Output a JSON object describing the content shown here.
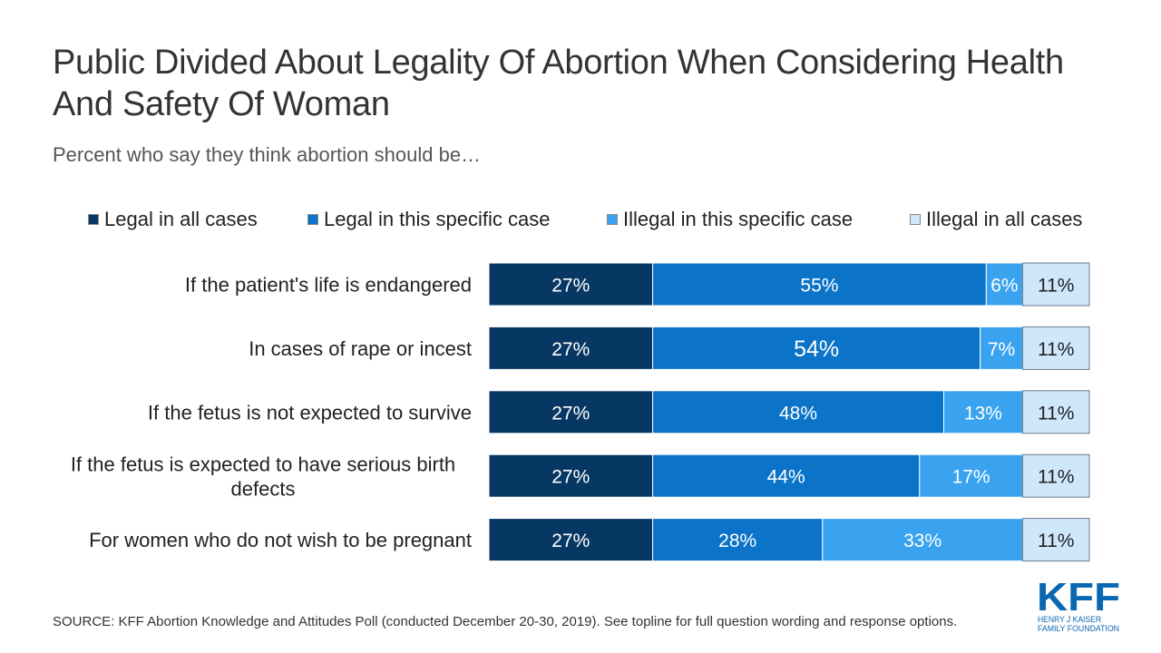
{
  "title": "Public Divided About Legality Of Abortion When Considering Health And Safety Of Woman",
  "subtitle": "Percent who say they think abortion should be…",
  "source": "SOURCE: KFF Abortion Knowledge and Attitudes Poll (conducted December 20-30, 2019). See topline for full question wording and response options.",
  "logo": {
    "mark": "KFF",
    "line1": "HENRY J KAISER",
    "line2": "FAMILY FOUNDATION",
    "color": "#0a67b2"
  },
  "chart_data": {
    "type": "bar",
    "orientation": "horizontal",
    "stacked": true,
    "categories": [
      "If the patient's life is endangered",
      "In cases of rape or incest",
      "If the fetus is not expected to survive",
      "If the fetus is expected to have serious birth defects",
      "For women who do not wish to be pregnant"
    ],
    "series": [
      {
        "name": "Legal in all cases",
        "values": [
          27,
          27,
          27,
          27,
          27
        ],
        "color": "#073763",
        "text_color": "#ffffff"
      },
      {
        "name": "Legal in this specific case",
        "values": [
          55,
          54,
          48,
          44,
          28
        ],
        "color": "#0b74c8",
        "text_color": "#ffffff"
      },
      {
        "name": "Illegal in this specific case",
        "values": [
          6,
          7,
          13,
          17,
          33
        ],
        "color": "#3aa3f0",
        "text_color": "#ffffff"
      },
      {
        "name": "Illegal in all cases",
        "values": [
          11,
          11,
          11,
          11,
          11
        ],
        "color": "#cfe7fb",
        "text_color": "#222222"
      }
    ],
    "value_suffix": "%",
    "legend_position": "top",
    "grid": false
  }
}
